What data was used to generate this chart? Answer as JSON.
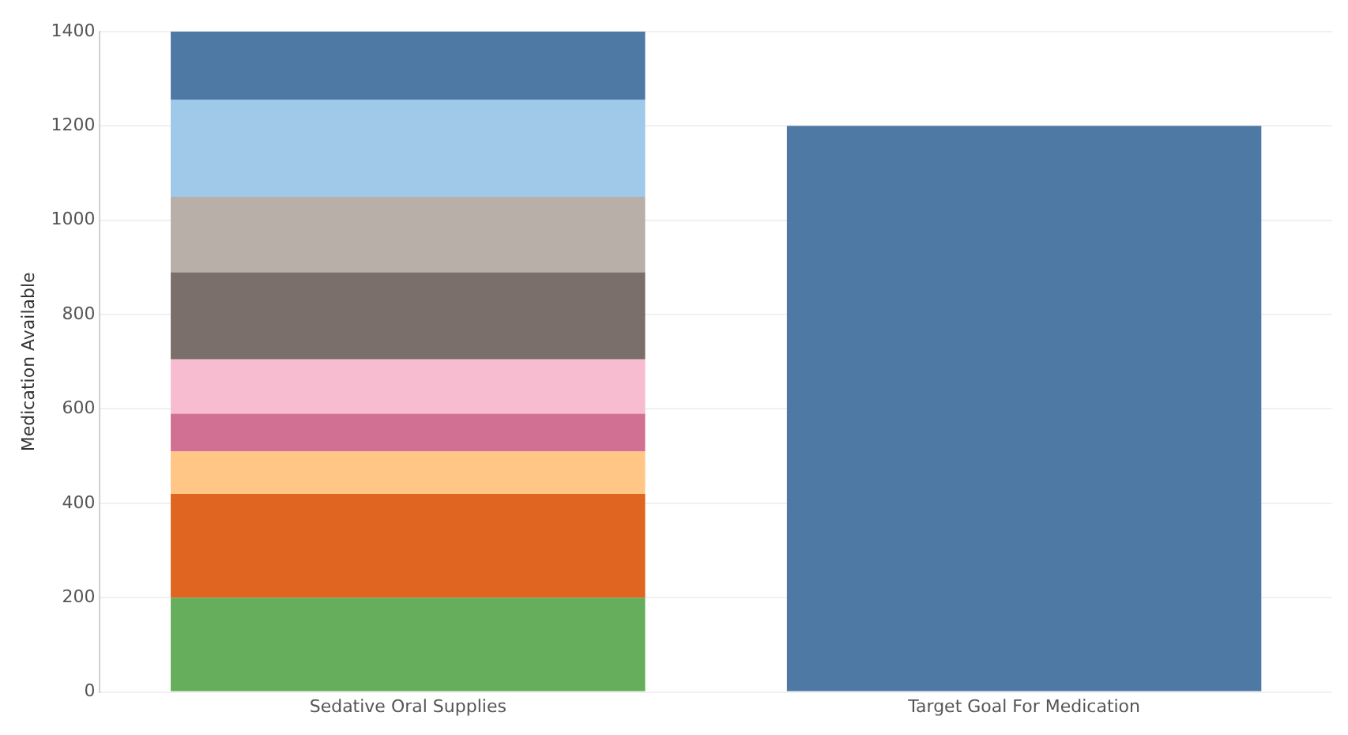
{
  "chart_data": {
    "type": "bar",
    "stacked": true,
    "ylabel": "Medication Available",
    "categories": [
      "Sedative Oral Supplies",
      "Target Goal For Medication"
    ],
    "series": [
      {
        "color": "#66ae5b",
        "values": [
          200,
          null
        ]
      },
      {
        "color": "#e06520",
        "values": [
          220,
          null
        ]
      },
      {
        "color": "#ffc685",
        "values": [
          90,
          null
        ]
      },
      {
        "color": "#d27093",
        "values": [
          80,
          null
        ]
      },
      {
        "color": "#f8bcd1",
        "values": [
          115,
          null
        ]
      },
      {
        "color": "#7a6f6b",
        "values": [
          185,
          null
        ]
      },
      {
        "color": "#b9afa9",
        "values": [
          160,
          null
        ]
      },
      {
        "color": "#a0c8e8",
        "values": [
          205,
          null
        ]
      },
      {
        "color": "#4e79a5",
        "values": [
          145,
          null
        ]
      },
      {
        "color": "#4e79a5",
        "values": [
          null,
          1200
        ]
      }
    ],
    "ylim": [
      0,
      1400
    ],
    "yticks": [
      0,
      200,
      400,
      600,
      800,
      1000,
      1200,
      1400
    ],
    "grid": "y",
    "legend": false
  }
}
